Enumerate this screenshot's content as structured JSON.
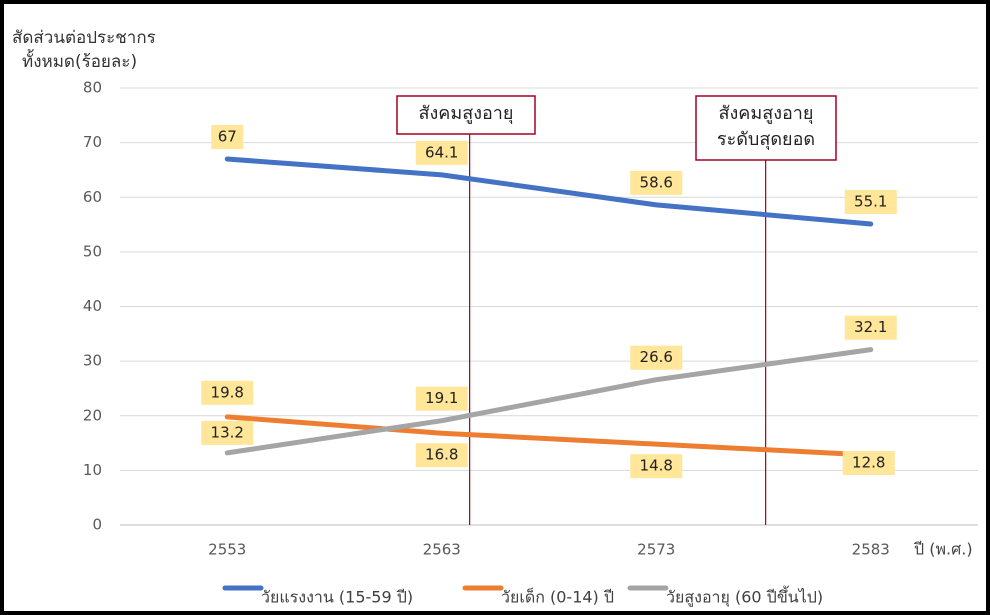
{
  "chart_data": {
    "type": "line",
    "y_label": [
      "สัดส่วนต่อประชากร",
      "ทั้งหมด(ร้อยละ)"
    ],
    "x_label": "ปี (พ.ศ.)",
    "categories": [
      "2553",
      "2563",
      "2573",
      "2583"
    ],
    "ylim": [
      0,
      80
    ],
    "yticks": [
      0,
      10,
      20,
      30,
      40,
      50,
      60,
      70,
      80
    ],
    "grid": true,
    "legend": "bottom",
    "series": [
      {
        "name": "วัยแรงงาน (15-59 ปี)",
        "color": "#4472c4",
        "values": [
          67,
          64.1,
          58.6,
          55.1
        ]
      },
      {
        "name": "วัยเด็ก (0-14) ปี",
        "color": "#ed7d31",
        "values": [
          19.8,
          16.8,
          14.8,
          12.8
        ]
      },
      {
        "name": "วัยสูงอายุ (60 ปีขึ้นไป)",
        "color": "#a5a5a5",
        "values": [
          13.2,
          19.1,
          26.6,
          32.1
        ]
      }
    ],
    "annotations": [
      {
        "lines": [
          "สังคมสูงอายุ"
        ],
        "color": "#a50021"
      },
      {
        "lines": [
          "สังคมสูงอายุ",
          "ระดับสุดยอด"
        ],
        "color": "#a50021"
      }
    ]
  }
}
